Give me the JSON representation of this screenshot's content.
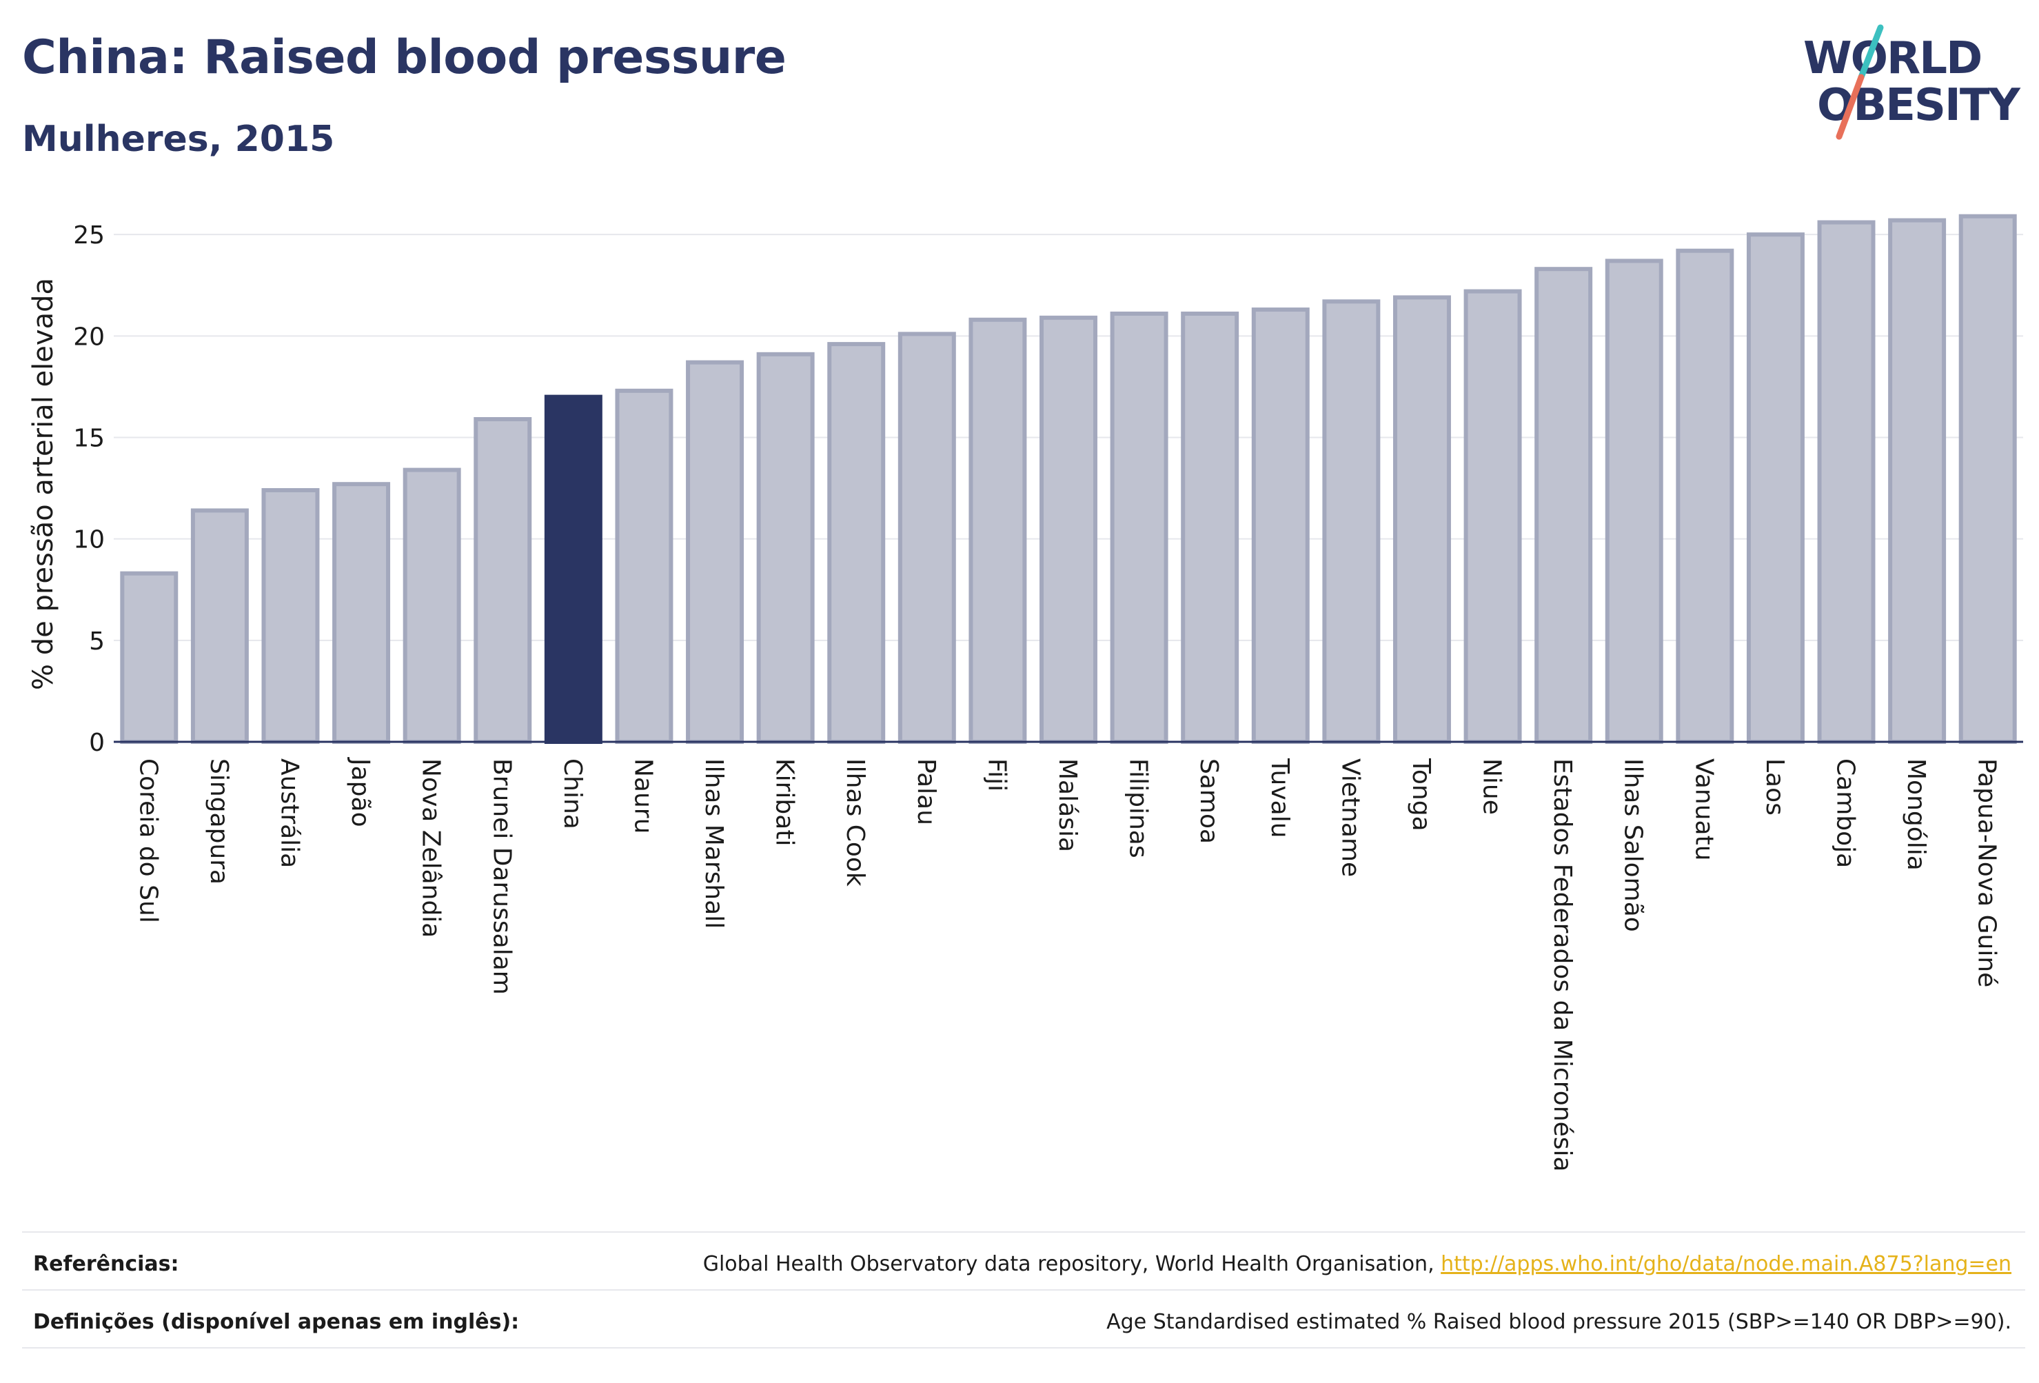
{
  "header": {
    "title": "China: Raised blood pressure",
    "subtitle": "Mulheres, 2015"
  },
  "logo": {
    "line1": "WORLD",
    "line2": "OBESITY"
  },
  "colors": {
    "bar": "#bfc2d0",
    "bar_outline": "#a3a8bd",
    "highlight": "#2a3563",
    "title": "#2a3563",
    "logo_slash_top": "#3cc0c0",
    "logo_slash_bottom": "#e8705a",
    "link": "#e5b21a"
  },
  "chart_data": {
    "type": "bar",
    "title": "China: Raised blood pressure",
    "subtitle": "Mulheres, 2015",
    "xlabel": "",
    "ylabel": "% de pressão arterial elevada",
    "ylim": [
      0,
      26.5
    ],
    "yticks": [
      0,
      5,
      10,
      15,
      20,
      25
    ],
    "grid": true,
    "highlight": "China",
    "categories": [
      "Coreia do Sul",
      "Singapura",
      "Austrália",
      "Japão",
      "Nova Zelândia",
      "Brunei Darussalam",
      "China",
      "Nauru",
      "Ilhas Marshall",
      "Kiribati",
      "Ilhas Cook",
      "Palau",
      "Fiji",
      "Malásia",
      "Filipinas",
      "Samoa",
      "Tuvalu",
      "Vietname",
      "Tonga",
      "Niue",
      "Estados Federados da Micronésia",
      "Ilhas Salomão",
      "Vanuatu",
      "Laos",
      "Camboja",
      "Mongólia",
      "Papua-Nova Guiné"
    ],
    "values": [
      8.3,
      11.4,
      12.4,
      12.7,
      13.4,
      15.9,
      17.0,
      17.3,
      18.7,
      19.1,
      19.6,
      20.1,
      20.8,
      20.9,
      21.1,
      21.1,
      21.3,
      21.7,
      21.9,
      22.2,
      23.3,
      23.7,
      24.2,
      25.0,
      25.6,
      25.7,
      25.9
    ]
  },
  "footer": {
    "references_label": "Referências:",
    "references_text": "Global Health Observatory data repository, World Health Organisation, ",
    "references_link": "http://apps.who.int/gho/data/node.main.A875?lang=en",
    "definitions_label": "Definições (disponível apenas em inglês):",
    "definitions_text": "Age Standardised estimated % Raised blood pressure 2015 (SBP>=140 OR DBP>=90)."
  }
}
